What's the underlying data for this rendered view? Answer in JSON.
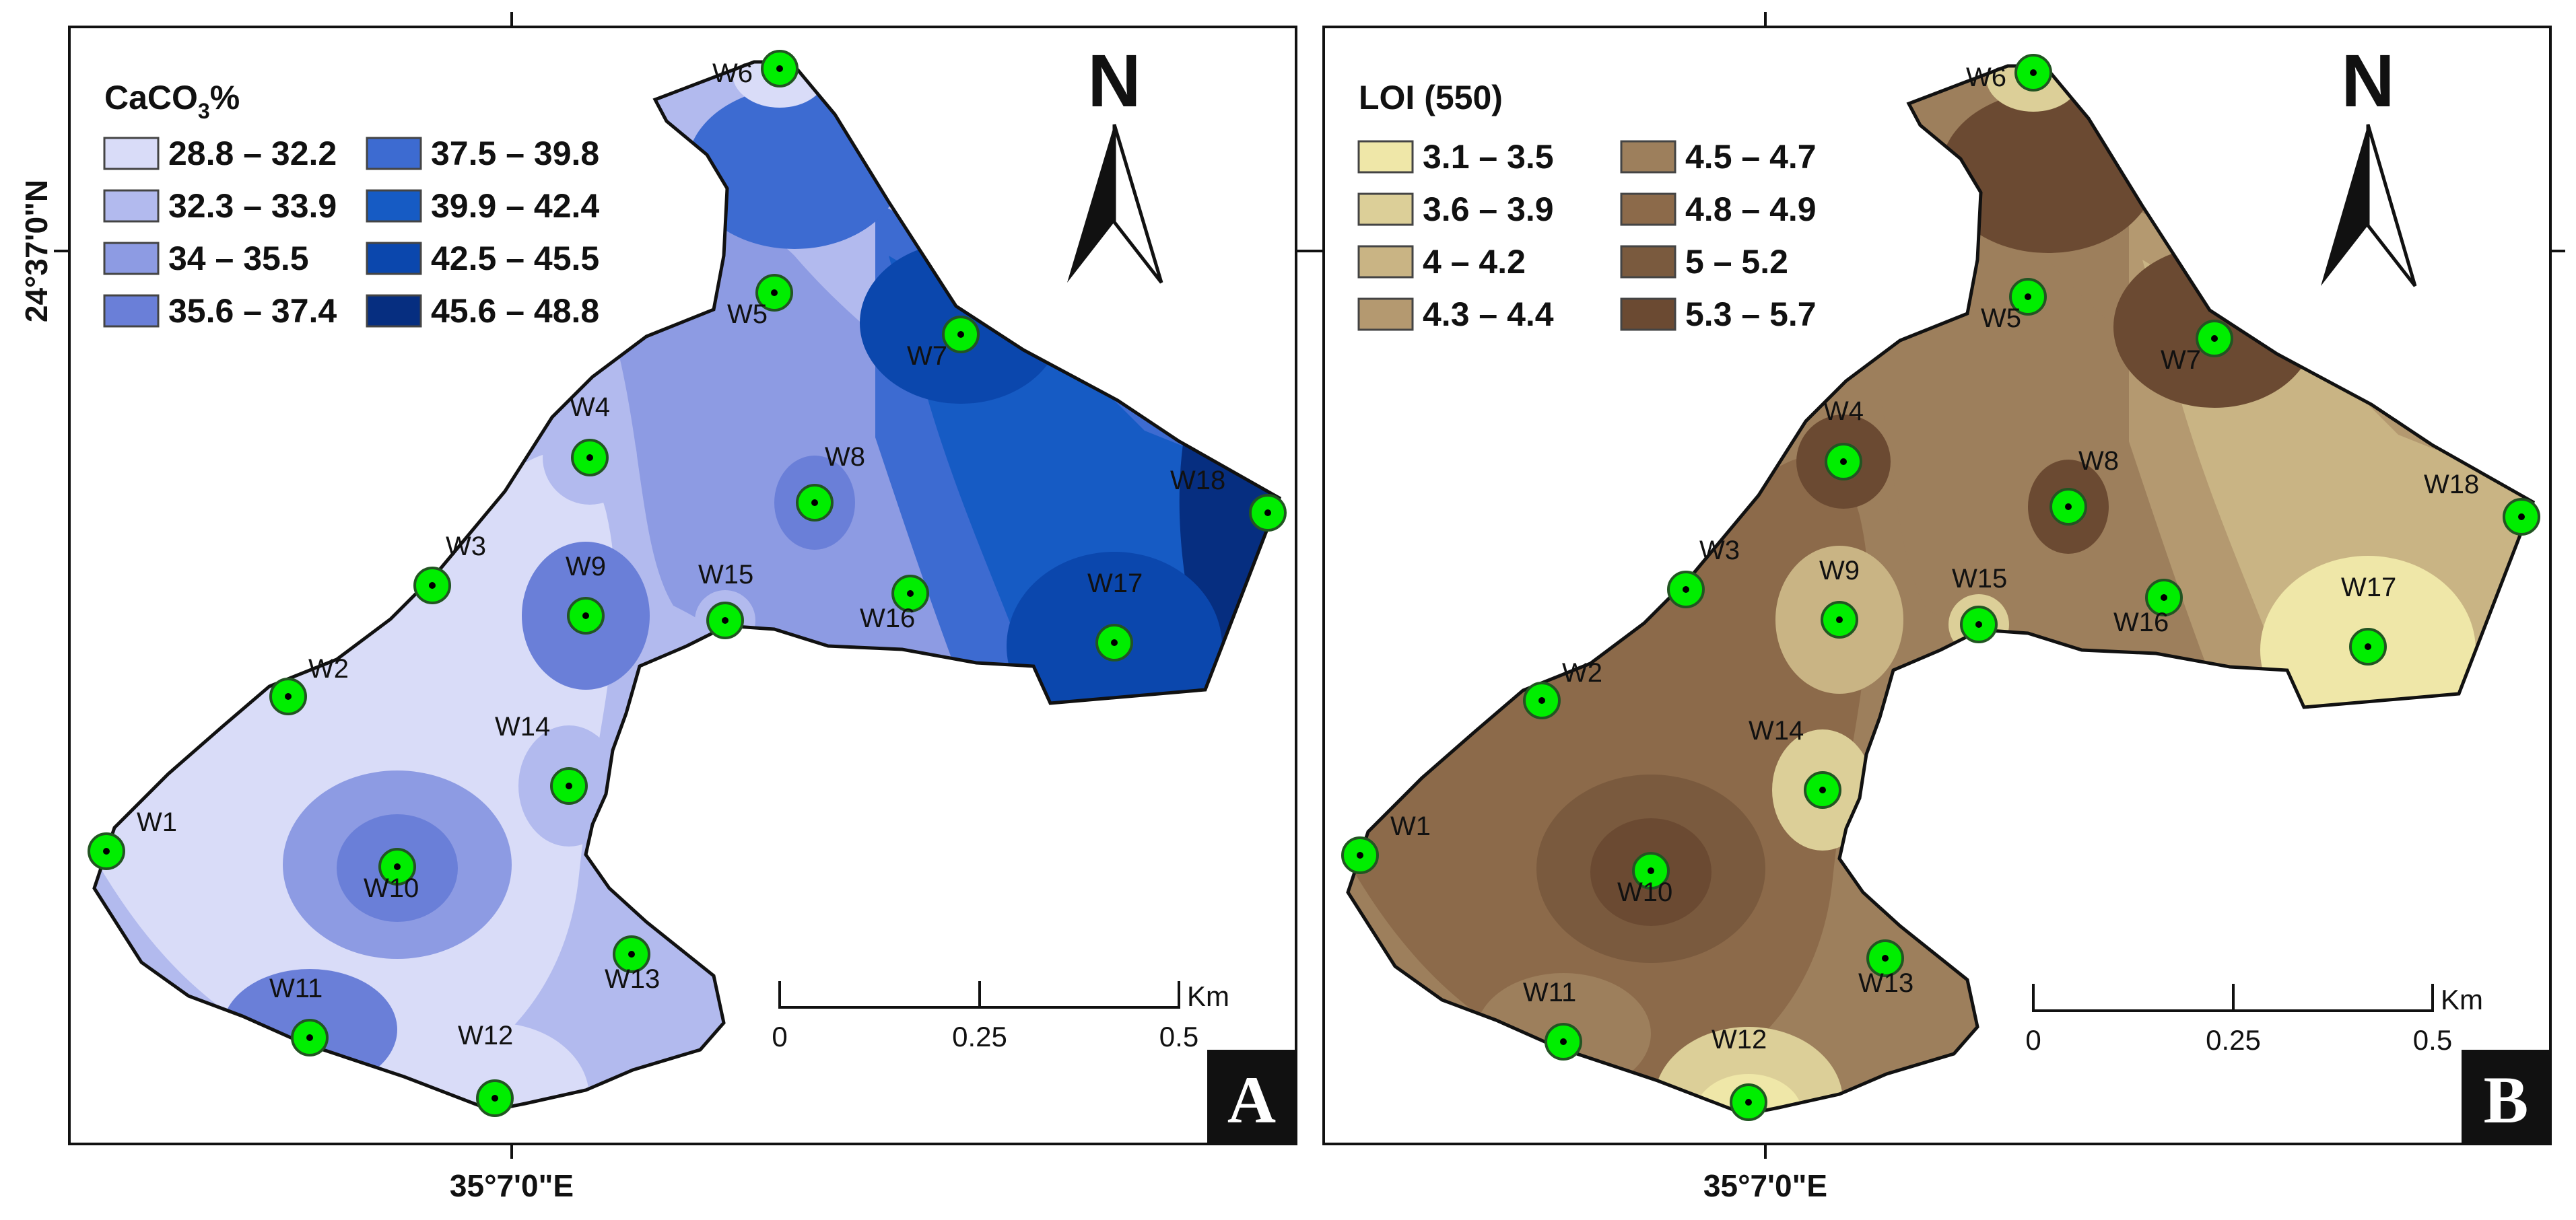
{
  "coordinates": {
    "lat_label": "24°37'0\"N",
    "lon_label": "35°7'0\"E"
  },
  "north_label": "N",
  "scale_bar": {
    "ticks": [
      "0",
      "0.25",
      "0.5"
    ],
    "unit": "Km"
  },
  "panels": [
    {
      "id": "A",
      "letter": "A",
      "variable": "CaCO3%",
      "legend_title_main": "CaCO",
      "legend_title_sub": "3",
      "legend_title_end": "%",
      "legend": [
        {
          "label": "28.8 – 32.2",
          "color": "#d9dcf8"
        },
        {
          "label": "32.3 – 33.9",
          "color": "#b2baee"
        },
        {
          "label": "34 – 35.5",
          "color": "#8d9be3"
        },
        {
          "label": "35.6 – 37.4",
          "color": "#6a7fd8"
        },
        {
          "label": "37.5 – 39.8",
          "color": "#3d6bd1"
        },
        {
          "label": "39.9 – 42.4",
          "color": "#165bc4"
        },
        {
          "label": "42.5 – 45.5",
          "color": "#0b47ad"
        },
        {
          "label": "45.6 – 48.8",
          "color": "#062e80"
        }
      ]
    },
    {
      "id": "B",
      "letter": "B",
      "variable": "LOI (550)",
      "legend_title": "LOI (550)",
      "legend": [
        {
          "label": "3.1 – 3.5",
          "color": "#efe7a8"
        },
        {
          "label": "3.6 – 3.9",
          "color": "#dccf98"
        },
        {
          "label": "4 – 4.2",
          "color": "#c9b484"
        },
        {
          "label": "4.3 – 4.4",
          "color": "#b49970"
        },
        {
          "label": "4.5 – 4.7",
          "color": "#9d7f5c"
        },
        {
          "label": "4.8 – 4.9",
          "color": "#8c6a4a"
        },
        {
          "label": "5 – 5.2",
          "color": "#7a5a3e"
        },
        {
          "label": "5.3 – 5.7",
          "color": "#6b4a32"
        }
      ]
    }
  ],
  "wells": [
    "W1",
    "W2",
    "W3",
    "W4",
    "W5",
    "W6",
    "W7",
    "W8",
    "W9",
    "W10",
    "W11",
    "W12",
    "W13",
    "W14",
    "W15",
    "W16",
    "W17",
    "W18"
  ]
}
